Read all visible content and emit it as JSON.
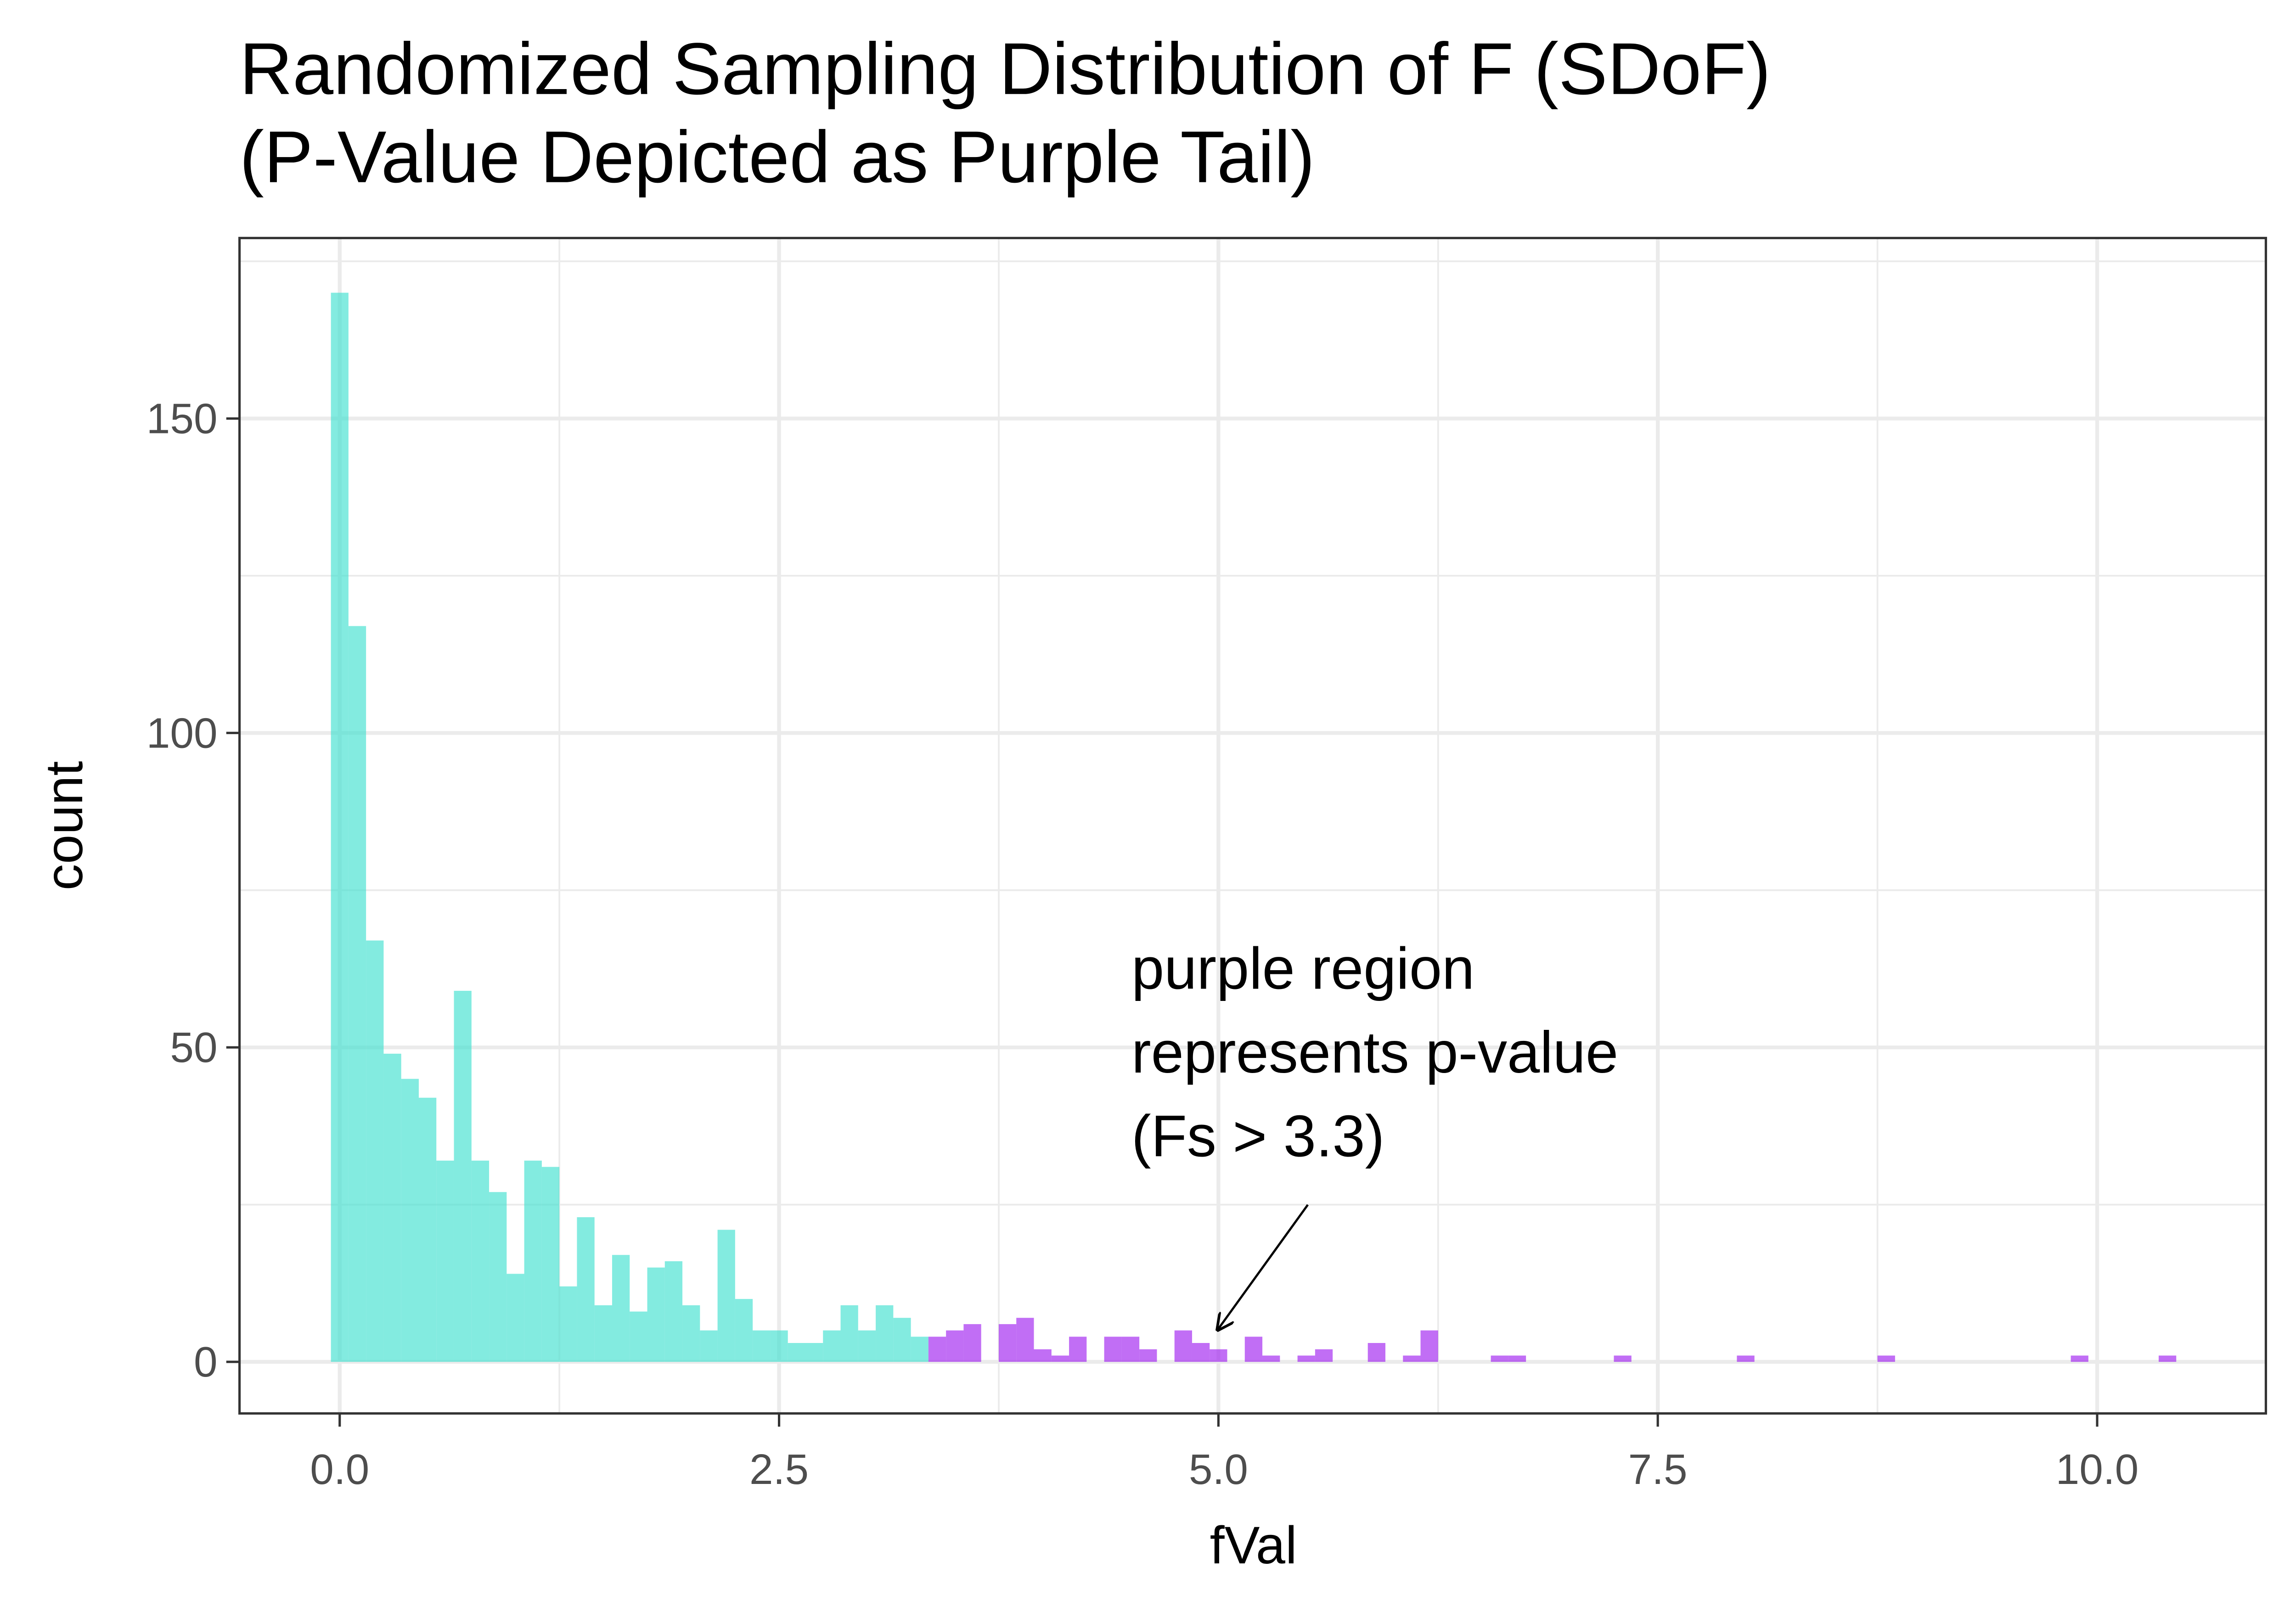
{
  "chart_data": {
    "type": "histogram",
    "title": [
      "Randomized Sampling Distribution of F (SDoF)",
      "(P-Value Depicted as Purple Tail)"
    ],
    "xlabel": "fVal",
    "ylabel": "count",
    "annotation": [
      "purple region",
      "represents p-value",
      "(Fs > 3.3)"
    ],
    "series": [
      {
        "color": "#40E0D0",
        "bins": [
          -0.05,
          0.05,
          0.15,
          0.25,
          0.35,
          0.45,
          0.55,
          0.65,
          0.75,
          0.85,
          0.95,
          1.05,
          1.15,
          1.25,
          1.35,
          1.45,
          1.55,
          1.65,
          1.75,
          1.85,
          1.95,
          2.05,
          2.15,
          2.25,
          2.35,
          2.45,
          2.55,
          2.65,
          2.75,
          2.85,
          2.95,
          3.05,
          3.15,
          3.25,
          3.35
        ],
        "values": [
          170,
          117,
          67,
          49,
          45,
          42,
          32,
          59,
          32,
          27,
          14,
          32,
          31,
          12,
          23,
          9,
          17,
          8,
          15,
          16,
          9,
          5,
          21,
          10,
          5,
          5,
          3,
          3,
          5,
          9,
          5,
          9,
          7,
          4
        ]
      },
      {
        "color": "#A020F0",
        "bins": [
          3.35,
          3.45,
          3.55,
          3.65,
          3.75,
          3.85,
          3.95,
          4.05,
          4.15,
          4.25,
          4.35,
          4.45,
          4.55,
          4.65,
          4.75,
          4.85,
          4.95,
          5.05,
          5.15,
          5.25,
          5.35,
          5.45,
          5.55,
          5.65,
          5.75,
          5.85,
          5.95,
          6.05,
          6.15,
          6.25,
          6.35,
          6.45,
          6.55,
          6.65,
          6.75,
          6.85,
          6.95,
          7.05,
          7.15,
          7.25,
          7.35,
          7.45,
          7.55,
          7.65,
          7.75,
          7.85,
          7.95,
          8.05,
          8.15,
          8.25,
          8.35,
          8.45,
          8.55,
          8.65,
          8.75,
          8.85,
          8.95,
          9.05,
          9.15,
          9.25,
          9.35,
          9.45,
          9.55,
          9.65,
          9.75,
          9.85,
          9.95,
          10.05,
          10.15,
          10.25,
          10.35,
          10.45
        ],
        "values": [
          4,
          5,
          6,
          0,
          6,
          7,
          2,
          1,
          4,
          0,
          4,
          4,
          2,
          0,
          5,
          3,
          2,
          0,
          4,
          1,
          0,
          1,
          2,
          0,
          0,
          3,
          0,
          1,
          5,
          0,
          0,
          0,
          1,
          1,
          0,
          0,
          0,
          0,
          0,
          1,
          0,
          0,
          0,
          0,
          0,
          0,
          1,
          0,
          0,
          0,
          0,
          0,
          0,
          0,
          1,
          0,
          0,
          0,
          0,
          0,
          0,
          0,
          0,
          0,
          0,
          1,
          0,
          0,
          0,
          0,
          1
        ]
      }
    ],
    "xlim": [
      -0.57,
      10.96
    ],
    "ylim": [
      -8.2,
      178.7
    ],
    "xticks": [
      {
        "value": 0,
        "label": "0.0"
      },
      2.5,
      {
        "value": 5,
        "label": "5.0"
      },
      7.5,
      {
        "value": 10,
        "label": "10.0"
      }
    ],
    "yticks": [
      0,
      50,
      100,
      150
    ],
    "grid": true
  }
}
